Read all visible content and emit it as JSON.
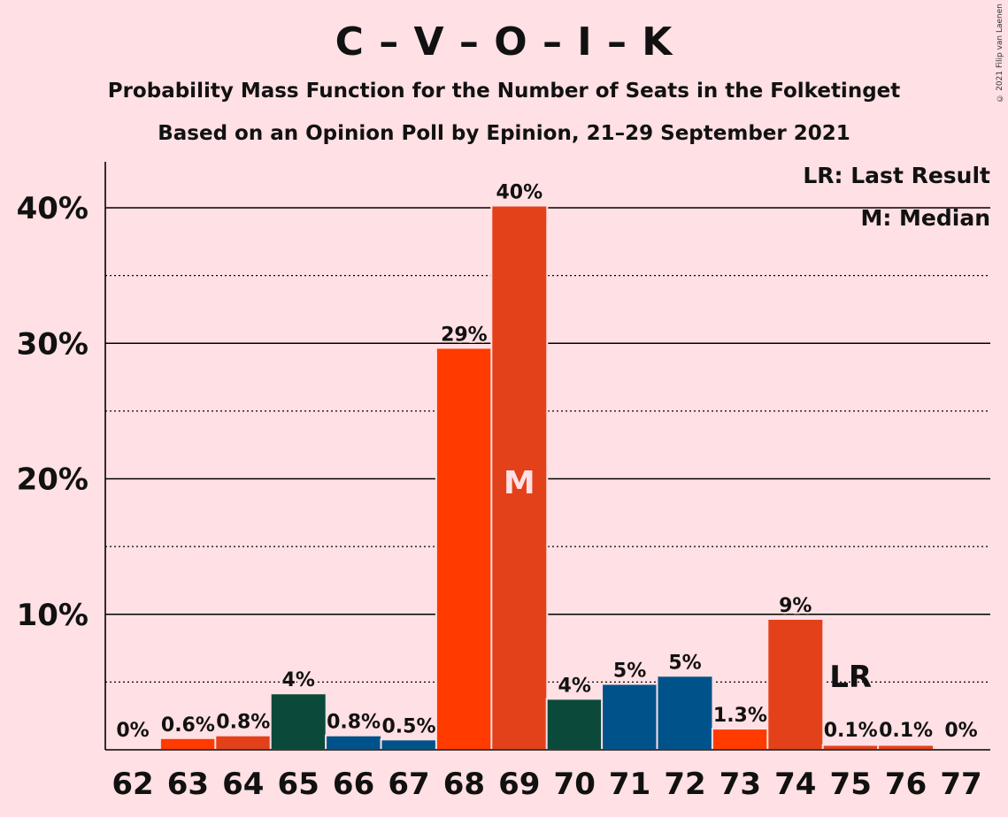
{
  "title": "C – V – O – I – K",
  "subtitle1": "Probability Mass Function for the Number of Seats in the Folketinget",
  "subtitle2": "Based on an Opinion Poll by Epinion, 21–29 September 2021",
  "copyright": "© 2021 Filip van Laenen",
  "legend": {
    "last_result": "LR: Last Result",
    "median": "M: Median"
  },
  "colors": {
    "background": "#FFE0E4",
    "C": "#0B4A3A",
    "V": "#00528A",
    "O": "#E3411A",
    "I": "#FF3B00",
    "K": "#E3411A"
  },
  "chart_data": {
    "type": "bar",
    "categories": [
      "62",
      "63",
      "64",
      "65",
      "66",
      "67",
      "68",
      "69",
      "70",
      "71",
      "72",
      "73",
      "74",
      "75",
      "76",
      "77"
    ],
    "values": [
      0,
      0.6,
      0.8,
      3.9,
      0.8,
      0.5,
      29.4,
      39.9,
      3.5,
      4.6,
      5.2,
      1.3,
      9.4,
      0.1,
      0.1,
      0
    ],
    "labels": [
      "0%",
      "0.6%",
      "0.8%",
      "4%",
      "0.8%",
      "0.5%",
      "29%",
      "40%",
      "4%",
      "5%",
      "5%",
      "1.3%",
      "9%",
      "0.1%",
      "0.1%",
      "0%"
    ],
    "bar_colors": [
      "#E3411A",
      "#FF3B00",
      "#E3411A",
      "#0B4A3A",
      "#00528A",
      "#00528A",
      "#FF3B00",
      "#E3411A",
      "#0B4A3A",
      "#00528A",
      "#00528A",
      "#FF3B00",
      "#E3411A",
      "#E3411A",
      "#E3411A",
      "#E3411A"
    ],
    "ylim": [
      0,
      43.3
    ],
    "yticks": [
      10,
      20,
      30,
      40
    ],
    "ytick_labels": [
      "10%",
      "20%",
      "30%",
      "40%"
    ],
    "minor_gridlines": [
      5,
      15,
      25,
      35
    ],
    "median_category": "69",
    "median_marker": "M",
    "last_result_category": "75",
    "last_result_marker": "LR",
    "grid": true,
    "legend_position": "top-right"
  }
}
